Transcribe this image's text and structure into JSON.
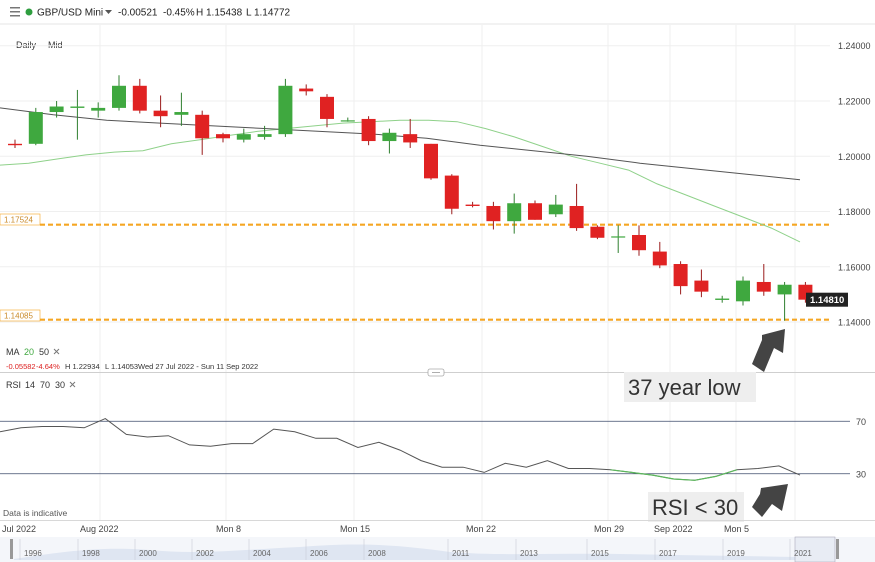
{
  "toolbar": {
    "symbol": "GBP/USD Mini",
    "change": "-0.00521",
    "change_pct": "-0.45%",
    "high": "H 1.15438",
    "low": "L 1.14772",
    "menu_icon": "hamburger-icon",
    "status_dot_color": "#2e9e3f"
  },
  "header": {
    "interval": "Daily",
    "price_type": "Mid"
  },
  "range_info": {
    "change": "-0.05582",
    "change_pct": "-4.64%",
    "high": "H 1.22934",
    "low": "L 1.14053",
    "dates": "Wed 27 Jul 2022 - Sun 11 Sep 2022"
  },
  "indicators": {
    "ma": {
      "name": "MA",
      "p1": "20",
      "p2": "50"
    },
    "rsi": {
      "name": "RSI",
      "p1": "14",
      "p2": "70",
      "p3": "30"
    }
  },
  "price_label": "1.14810",
  "levels": [
    {
      "value": 1.17524,
      "label": "1.17524"
    },
    {
      "value": 1.14085,
      "label": "1.14085"
    }
  ],
  "annotations": {
    "low": "37 year low",
    "rsi": "RSI < 30"
  },
  "disclaimer": "Data is indicative",
  "xaxis_labels": [
    "Jul 2022",
    "Aug 2022",
    "Mon 8",
    "Mon 15",
    "Mon 22",
    "Mon 29",
    "Sep 2022",
    "Mon 5"
  ],
  "navigator_years": [
    "1996",
    "1998",
    "2000",
    "2002",
    "2004",
    "2006",
    "2008",
    "2011",
    "2013",
    "2015",
    "2017",
    "2019",
    "2021"
  ],
  "colors": {
    "up": "#3fa83f",
    "down": "#e02222",
    "level": "#f5a623",
    "ma20": "#8fd18a",
    "ma50": "#555555",
    "rsi": "#555555",
    "rsi_low": "#5cb85c"
  },
  "chart_data": [
    {
      "type": "candlestick",
      "title": "GBP/USD Mini",
      "y_ticks": [
        "1.24000",
        "1.22000",
        "1.20000",
        "1.18000",
        "1.16000",
        "1.14000"
      ],
      "ylim": [
        1.1335,
        1.2475
      ],
      "candles": [
        {
          "o": 1.2045,
          "h": 1.206,
          "l": 1.203,
          "c": 1.204
        },
        {
          "o": 1.2045,
          "h": 1.2175,
          "l": 1.204,
          "c": 1.216
        },
        {
          "o": 1.216,
          "h": 1.22,
          "l": 1.214,
          "c": 1.218
        },
        {
          "o": 1.2175,
          "h": 1.224,
          "l": 1.206,
          "c": 1.218
        },
        {
          "o": 1.2165,
          "h": 1.2195,
          "l": 1.214,
          "c": 1.2175
        },
        {
          "o": 1.2175,
          "h": 1.2293,
          "l": 1.2165,
          "c": 1.2255
        },
        {
          "o": 1.2255,
          "h": 1.228,
          "l": 1.2155,
          "c": 1.2165
        },
        {
          "o": 1.2165,
          "h": 1.222,
          "l": 1.2105,
          "c": 1.2145
        },
        {
          "o": 1.215,
          "h": 1.223,
          "l": 1.211,
          "c": 1.216
        },
        {
          "o": 1.215,
          "h": 1.2165,
          "l": 1.2005,
          "c": 1.2065
        },
        {
          "o": 1.208,
          "h": 1.2085,
          "l": 1.205,
          "c": 1.2065
        },
        {
          "o": 1.206,
          "h": 1.21,
          "l": 1.205,
          "c": 1.208
        },
        {
          "o": 1.207,
          "h": 1.211,
          "l": 1.206,
          "c": 1.208
        },
        {
          "o": 1.208,
          "h": 1.228,
          "l": 1.207,
          "c": 1.2255
        },
        {
          "o": 1.2245,
          "h": 1.226,
          "l": 1.222,
          "c": 1.2235
        },
        {
          "o": 1.2215,
          "h": 1.2225,
          "l": 1.2105,
          "c": 1.2135
        },
        {
          "o": 1.213,
          "h": 1.214,
          "l": 1.2125,
          "c": 1.213
        },
        {
          "o": 1.2135,
          "h": 1.2145,
          "l": 1.204,
          "c": 1.2055
        },
        {
          "o": 1.2055,
          "h": 1.21,
          "l": 1.201,
          "c": 1.2085
        },
        {
          "o": 1.208,
          "h": 1.2135,
          "l": 1.203,
          "c": 1.205
        },
        {
          "o": 1.2045,
          "h": 1.2045,
          "l": 1.1915,
          "c": 1.192
        },
        {
          "o": 1.193,
          "h": 1.1935,
          "l": 1.179,
          "c": 1.181
        },
        {
          "o": 1.1825,
          "h": 1.1835,
          "l": 1.1815,
          "c": 1.182
        },
        {
          "o": 1.182,
          "h": 1.1835,
          "l": 1.1735,
          "c": 1.1765
        },
        {
          "o": 1.1765,
          "h": 1.1865,
          "l": 1.172,
          "c": 1.183
        },
        {
          "o": 1.183,
          "h": 1.184,
          "l": 1.177,
          "c": 1.177
        },
        {
          "o": 1.179,
          "h": 1.186,
          "l": 1.178,
          "c": 1.1825
        },
        {
          "o": 1.182,
          "h": 1.19,
          "l": 1.173,
          "c": 1.174
        },
        {
          "o": 1.1745,
          "h": 1.175,
          "l": 1.17,
          "c": 1.1705
        },
        {
          "o": 1.171,
          "h": 1.175,
          "l": 1.165,
          "c": 1.171
        },
        {
          "o": 1.1715,
          "h": 1.175,
          "l": 1.164,
          "c": 1.166
        },
        {
          "o": 1.1655,
          "h": 1.169,
          "l": 1.1595,
          "c": 1.1605
        },
        {
          "o": 1.161,
          "h": 1.162,
          "l": 1.15,
          "c": 1.153
        },
        {
          "o": 1.155,
          "h": 1.159,
          "l": 1.149,
          "c": 1.151
        },
        {
          "o": 1.148,
          "h": 1.1495,
          "l": 1.147,
          "c": 1.1485
        },
        {
          "o": 1.1475,
          "h": 1.1565,
          "l": 1.146,
          "c": 1.155
        },
        {
          "o": 1.1545,
          "h": 1.161,
          "l": 1.1495,
          "c": 1.151
        },
        {
          "o": 1.15,
          "h": 1.1545,
          "l": 1.1405,
          "c": 1.1535
        },
        {
          "o": 1.1535,
          "h": 1.1545,
          "l": 1.147,
          "c": 1.1481
        }
      ],
      "ma20": [
        1.1968,
        1.1975,
        1.199,
        1.2005,
        1.2015,
        1.202,
        1.2045,
        1.206,
        1.2075,
        1.209,
        1.21,
        1.211,
        1.212,
        1.2125,
        1.213,
        1.213,
        1.2125,
        1.21,
        1.207,
        1.2035,
        1.2,
        1.1975,
        1.195,
        1.19,
        1.186,
        1.182,
        1.178,
        1.174,
        1.169
      ],
      "ma20_start": 0,
      "ma20_step": 0.05,
      "ma50": [
        1.2175,
        1.215,
        1.213,
        1.212,
        1.211,
        1.21,
        1.209,
        1.208,
        1.2065,
        1.204,
        1.202,
        1.2,
        1.1975,
        1.1955,
        1.1935,
        1.1915
      ],
      "ma50_start": 0,
      "ma50_step": 0.0667
    },
    {
      "type": "line",
      "title": "RSI",
      "y_ticks": [
        "70",
        "30"
      ],
      "levels": [
        70,
        30
      ],
      "ylim": [
        10,
        90
      ],
      "values": [
        62,
        65,
        66,
        66,
        65,
        72,
        60,
        58,
        59,
        52,
        51,
        53,
        53,
        64,
        62,
        57,
        57,
        50,
        54,
        48,
        40,
        35,
        35,
        31,
        38,
        35,
        40,
        34,
        34,
        33,
        31,
        29,
        26,
        25,
        28,
        33,
        34,
        36,
        29
      ]
    }
  ]
}
